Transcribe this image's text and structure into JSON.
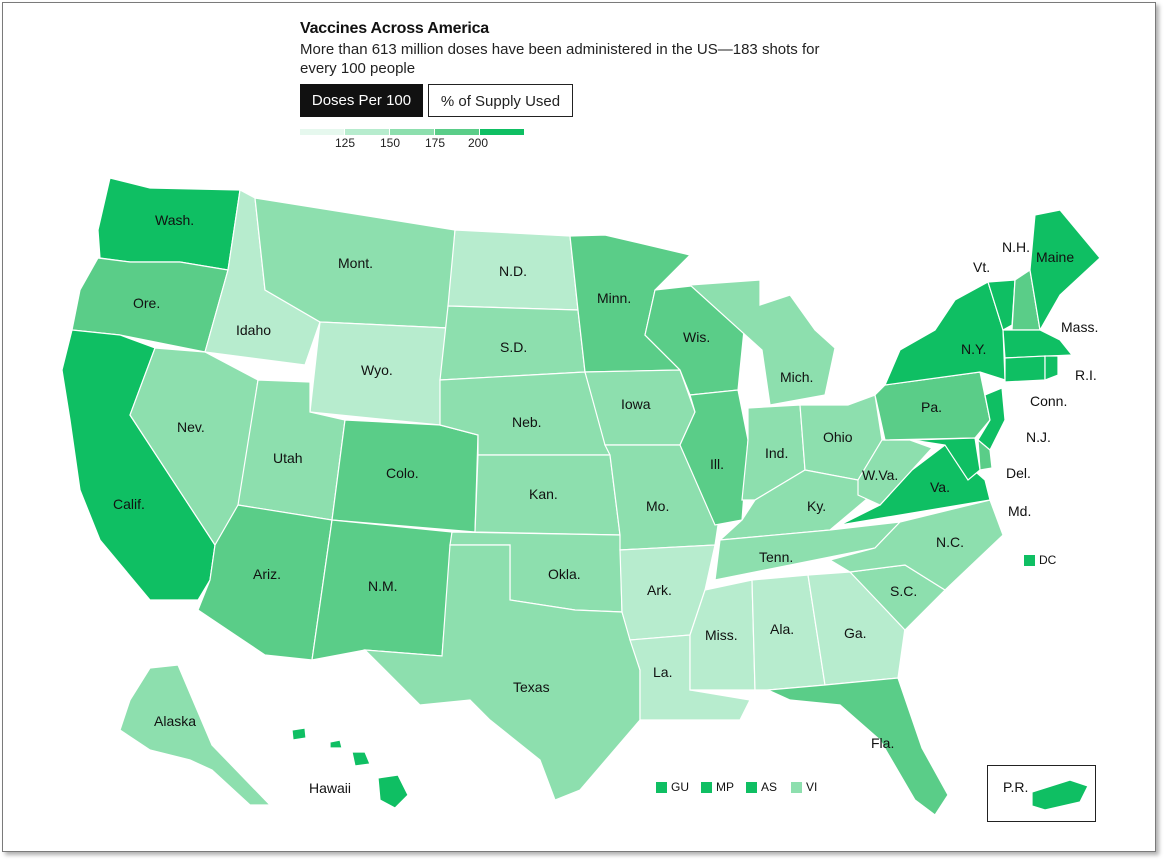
{
  "title": "Vaccines Across America",
  "subtitle": "More than 613 million doses have been administered in the US—183 shots for every 100 people",
  "tabs": {
    "active": "Doses Per 100",
    "inactive": "% of Supply Used"
  },
  "legend": {
    "ticks": [
      "125",
      "150",
      "175",
      "200"
    ]
  },
  "colors": {
    "c1": "#e6f8ee",
    "c2": "#b7ecce",
    "c3": "#8ddfae",
    "c4": "#5acd88",
    "c5": "#0fbf63"
  },
  "states": {
    "wa": "Wash.",
    "or": "Ore.",
    "ca": "Calif.",
    "id": "Idaho",
    "nv": "Nev.",
    "mt": "Mont.",
    "wy": "Wyo.",
    "ut": "Utah",
    "az": "Ariz.",
    "co": "Colo.",
    "nm": "N.M.",
    "nd": "N.D.",
    "sd": "S.D.",
    "ne": "Neb.",
    "ks": "Kan.",
    "ok": "Okla.",
    "tx": "Texas",
    "mn": "Minn.",
    "ia": "Iowa",
    "mo": "Mo.",
    "ar": "Ark.",
    "la": "La.",
    "wi": "Wis.",
    "il": "Ill.",
    "mi": "Mich.",
    "in": "Ind.",
    "oh": "Ohio",
    "ky": "Ky.",
    "tn": "Tenn.",
    "ms": "Miss.",
    "al": "Ala.",
    "ga": "Ga.",
    "fl": "Fla.",
    "sc": "S.C.",
    "nc": "N.C.",
    "va": "Va.",
    "wv": "W.Va.",
    "pa": "Pa.",
    "ny": "N.Y.",
    "vt": "Vt.",
    "nh": "N.H.",
    "me": "Maine",
    "ma": "Mass.",
    "ri": "R.I.",
    "ct": "Conn.",
    "nj": "N.J.",
    "de": "Del.",
    "md": "Md.",
    "ak": "Alaska",
    "hi": "Hawaii",
    "pr": "P.R."
  },
  "territories": {
    "dc": "DC",
    "gu": "GU",
    "mp": "MP",
    "as": "AS",
    "vi": "VI"
  },
  "tiers": {
    "darkest": [
      "Wash.",
      "Calif.",
      "N.Y.",
      "Vt.",
      "Maine",
      "Mass.",
      "R.I.",
      "Conn.",
      "N.J.",
      "Md.",
      "Va.",
      "Hawaii",
      "P.R.",
      "DC",
      "GU",
      "MP",
      "AS"
    ],
    "dark": [
      "Ore.",
      "Colo.",
      "N.M.",
      "Ariz.",
      "Minn.",
      "Wis.",
      "Ill.",
      "Pa.",
      "N.H.",
      "Fla.",
      "Del."
    ],
    "medium": [
      "Mont.",
      "Nev.",
      "Utah",
      "S.D.",
      "Neb.",
      "Kan.",
      "Okla.",
      "Texas",
      "Iowa",
      "Mo.",
      "Mich.",
      "Ind.",
      "Ohio",
      "Ky.",
      "Tenn.",
      "W.Va.",
      "N.C.",
      "S.C.",
      "Alaska",
      "VI"
    ],
    "light": [
      "Idaho",
      "Wyo.",
      "N.D.",
      "Ark.",
      "La.",
      "Miss.",
      "Ala.",
      "Ga."
    ]
  }
}
